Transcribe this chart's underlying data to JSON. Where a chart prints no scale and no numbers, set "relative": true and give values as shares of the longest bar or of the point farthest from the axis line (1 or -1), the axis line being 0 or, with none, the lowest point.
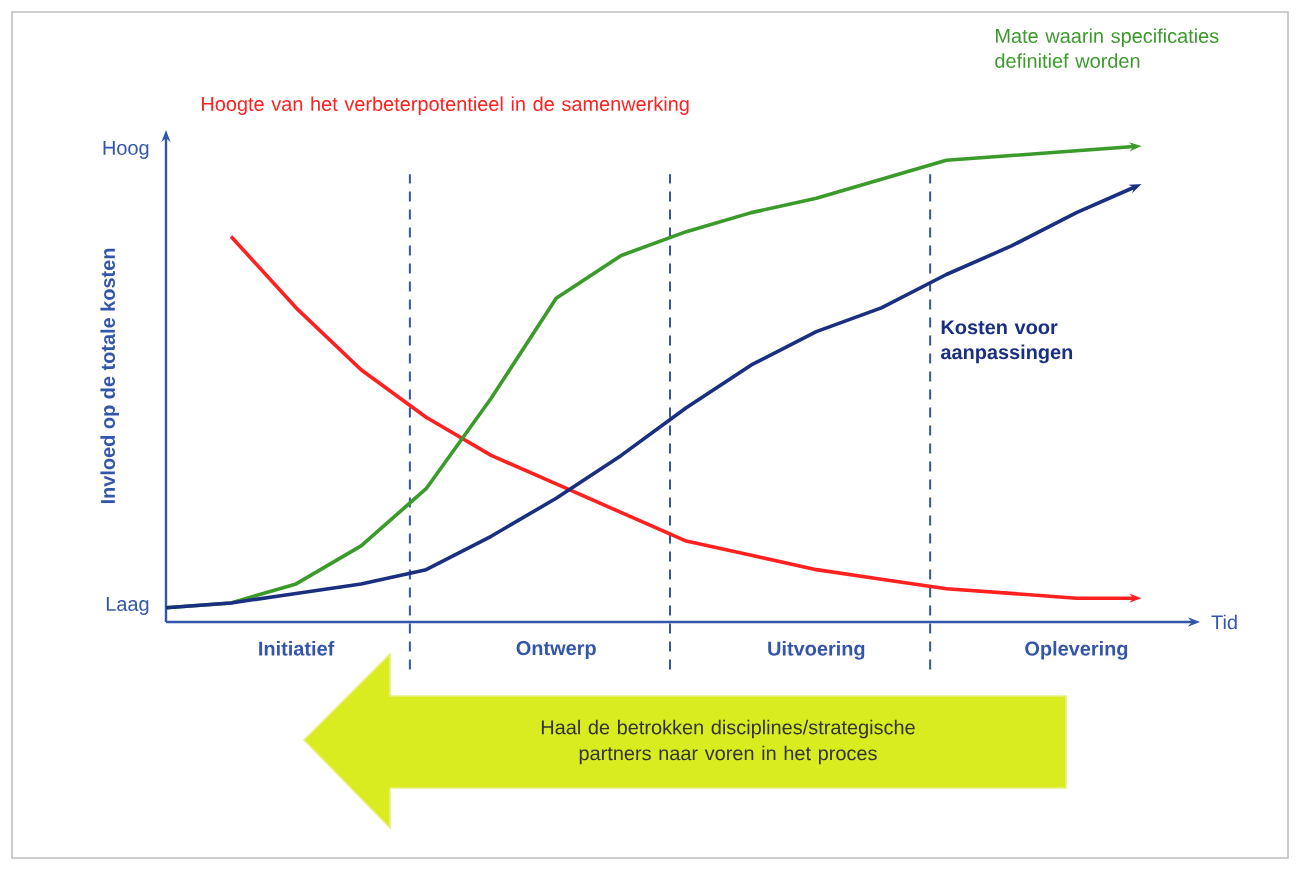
{
  "chart_data": {
    "type": "line",
    "relative": true,
    "xlabel": "Tid",
    "ylabel": "Invloed op de totale kosten",
    "categories": [
      null,
      null,
      "Initiatief",
      null,
      null,
      null,
      "Ontwerp",
      null,
      null,
      null,
      "Uitvoering",
      null,
      null,
      null,
      "Oplevering",
      null
    ],
    "series": [
      {
        "name": "Hoogte van het verbeterpotentieel in de samenwerking",
        "color": "#ff2020",
        "values": [
          null,
          0.81,
          0.66,
          0.53,
          0.43,
          0.35,
          0.29,
          0.23,
          0.17,
          0.14,
          0.11,
          0.09,
          0.07,
          0.06,
          0.05,
          0.05
        ]
      },
      {
        "name": "Mate waarin specificaties definitief worden",
        "color": "#3a9a2a",
        "values": [
          0.03,
          0.04,
          0.08,
          0.16,
          0.28,
          0.47,
          0.68,
          0.77,
          0.82,
          0.86,
          0.89,
          0.93,
          0.97,
          0.98,
          0.99,
          1.0
        ]
      },
      {
        "name": "Kosten voor aanpassingen",
        "color": "#1a2f80",
        "values": [
          0.03,
          0.04,
          0.06,
          0.08,
          0.11,
          0.18,
          0.26,
          0.35,
          0.45,
          0.54,
          0.61,
          0.66,
          0.73,
          0.79,
          0.86,
          0.92
        ]
      }
    ],
    "annotations": [
      "Hoog",
      "Laag",
      "Haal de betrokken disciplines/strategische partners naar voren in het proces"
    ],
    "marker": "none",
    "line_style": "solid"
  }
}
